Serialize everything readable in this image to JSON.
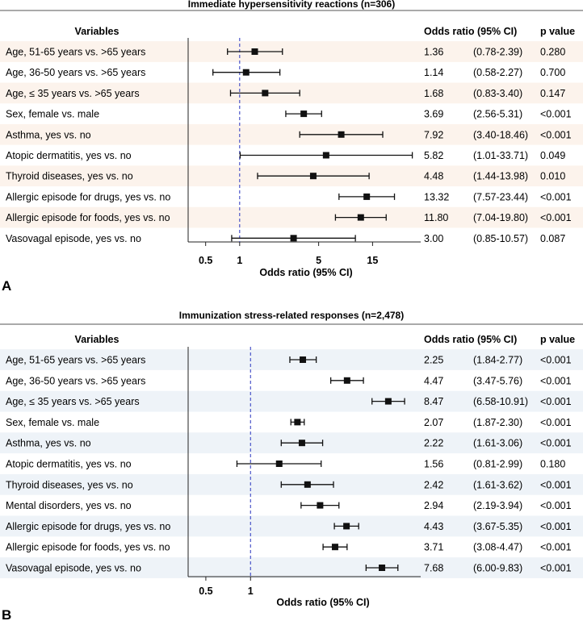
{
  "chart_data": [
    {
      "type": "forest",
      "panel_label": "A",
      "title": "Immediate hypersensitivity reactions (n=306)",
      "header": {
        "variables": "Variables",
        "or": "Odds ratio (95% CI)",
        "p": "p value"
      },
      "xlabel": "Odds ratio (95% CI)",
      "scale": "log",
      "xlim": [
        0.35,
        40
      ],
      "xticks": [
        0.5,
        1,
        5,
        15
      ],
      "xtick_labels": [
        "0.5",
        "1",
        "5",
        "15"
      ],
      "reference_line": 1,
      "rows": [
        {
          "label": "Age, 51-65 years vs. >65 years",
          "or": 1.36,
          "lo": 0.78,
          "hi": 2.39,
          "or_text": "1.36",
          "ci_text": "(0.78-2.39)",
          "p": "0.280"
        },
        {
          "label": "Age, 36-50 years vs. >65 years",
          "or": 1.14,
          "lo": 0.58,
          "hi": 2.27,
          "or_text": "1.14",
          "ci_text": "(0.58-2.27)",
          "p": "0.700"
        },
        {
          "label": "Age, ≤ 35 years vs. >65 years",
          "or": 1.68,
          "lo": 0.83,
          "hi": 3.4,
          "or_text": "1.68",
          "ci_text": "(0.83-3.40)",
          "p": "0.147"
        },
        {
          "label": "Sex, female vs. male",
          "or": 3.69,
          "lo": 2.56,
          "hi": 5.31,
          "or_text": "3.69",
          "ci_text": "(2.56-5.31)",
          "p": "<0.001"
        },
        {
          "label": "Asthma, yes vs. no",
          "or": 7.92,
          "lo": 3.4,
          "hi": 18.46,
          "or_text": "7.92",
          "ci_text": "(3.40-18.46)",
          "p": "<0.001"
        },
        {
          "label": "Atopic dermatitis, yes vs. no",
          "or": 5.82,
          "lo": 1.01,
          "hi": 33.71,
          "or_text": "5.82",
          "ci_text": "(1.01-33.71)",
          "p": "0.049"
        },
        {
          "label": "Thyroid diseases, yes vs. no",
          "or": 4.48,
          "lo": 1.44,
          "hi": 13.98,
          "or_text": "4.48",
          "ci_text": "(1.44-13.98)",
          "p": "0.010"
        },
        {
          "label": "Allergic episode for drugs, yes vs. no",
          "or": 13.32,
          "lo": 7.57,
          "hi": 23.44,
          "or_text": "13.32",
          "ci_text": "(7.57-23.44)",
          "p": "<0.001"
        },
        {
          "label": "Allergic episode for foods, yes vs. no",
          "or": 11.8,
          "lo": 7.04,
          "hi": 19.8,
          "or_text": "11.80",
          "ci_text": "(7.04-19.80)",
          "p": "<0.001"
        },
        {
          "label": "Vasovagal episode, yes vs. no",
          "or": 3.0,
          "lo": 0.85,
          "hi": 10.57,
          "or_text": "3.00",
          "ci_text": "(0.85-10.57)",
          "p": "0.087"
        }
      ],
      "stripe_color": "#fcf3ec"
    },
    {
      "type": "forest",
      "panel_label": "B",
      "title": "Immunization stress-related responses (n=2,478)",
      "header": {
        "variables": "Variables",
        "or": "Odds ratio (95% CI)",
        "p": "p value"
      },
      "xlabel": "Odds ratio (95% CI)",
      "scale": "log",
      "xlim": [
        0.38,
        14
      ],
      "xticks": [
        0.5,
        1
      ],
      "xtick_labels": [
        "0.5",
        "1"
      ],
      "reference_line": 1,
      "rows": [
        {
          "label": "Age, 51-65 years vs. >65 years",
          "or": 2.25,
          "lo": 1.84,
          "hi": 2.77,
          "or_text": "2.25",
          "ci_text": "(1.84-2.77)",
          "p": "<0.001"
        },
        {
          "label": "Age, 36-50 years vs. >65 years",
          "or": 4.47,
          "lo": 3.47,
          "hi": 5.76,
          "or_text": "4.47",
          "ci_text": "(3.47-5.76)",
          "p": "<0.001"
        },
        {
          "label": "Age, ≤ 35 years vs. >65 years",
          "or": 8.47,
          "lo": 6.58,
          "hi": 10.91,
          "or_text": "8.47",
          "ci_text": "(6.58-10.91)",
          "p": "<0.001"
        },
        {
          "label": "Sex, female vs. male",
          "or": 2.07,
          "lo": 1.87,
          "hi": 2.3,
          "or_text": "2.07",
          "ci_text": "(1.87-2.30)",
          "p": "<0.001"
        },
        {
          "label": "Asthma, yes vs. no",
          "or": 2.22,
          "lo": 1.61,
          "hi": 3.06,
          "or_text": "2.22",
          "ci_text": "(1.61-3.06)",
          "p": "<0.001"
        },
        {
          "label": "Atopic dermatitis, yes vs. no",
          "or": 1.56,
          "lo": 0.81,
          "hi": 2.99,
          "or_text": "1.56",
          "ci_text": "(0.81-2.99)",
          "p": "0.180"
        },
        {
          "label": "Thyroid diseases, yes vs. no",
          "or": 2.42,
          "lo": 1.61,
          "hi": 3.62,
          "or_text": "2.42",
          "ci_text": "(1.61-3.62)",
          "p": "<0.001"
        },
        {
          "label": "Mental disorders, yes vs. no",
          "or": 2.94,
          "lo": 2.19,
          "hi": 3.94,
          "or_text": "2.94",
          "ci_text": "(2.19-3.94)",
          "p": "<0.001"
        },
        {
          "label": "Allergic episode for drugs, yes vs. no",
          "or": 4.43,
          "lo": 3.67,
          "hi": 5.35,
          "or_text": "4.43",
          "ci_text": "(3.67-5.35)",
          "p": "<0.001"
        },
        {
          "label": "Allergic episode for foods, yes vs. no",
          "or": 3.71,
          "lo": 3.08,
          "hi": 4.47,
          "or_text": "3.71",
          "ci_text": "(3.08-4.47)",
          "p": "<0.001"
        },
        {
          "label": "Vasovagal episode, yes vs. no",
          "or": 7.68,
          "lo": 6.0,
          "hi": 9.83,
          "or_text": "7.68",
          "ci_text": "(6.00-9.83)",
          "p": "<0.001"
        }
      ],
      "stripe_color": "#eef3f8"
    }
  ],
  "colors": {
    "reference_line": "#3b46c4",
    "marker": "#111111",
    "separator": "#555555",
    "text": "#111111"
  }
}
